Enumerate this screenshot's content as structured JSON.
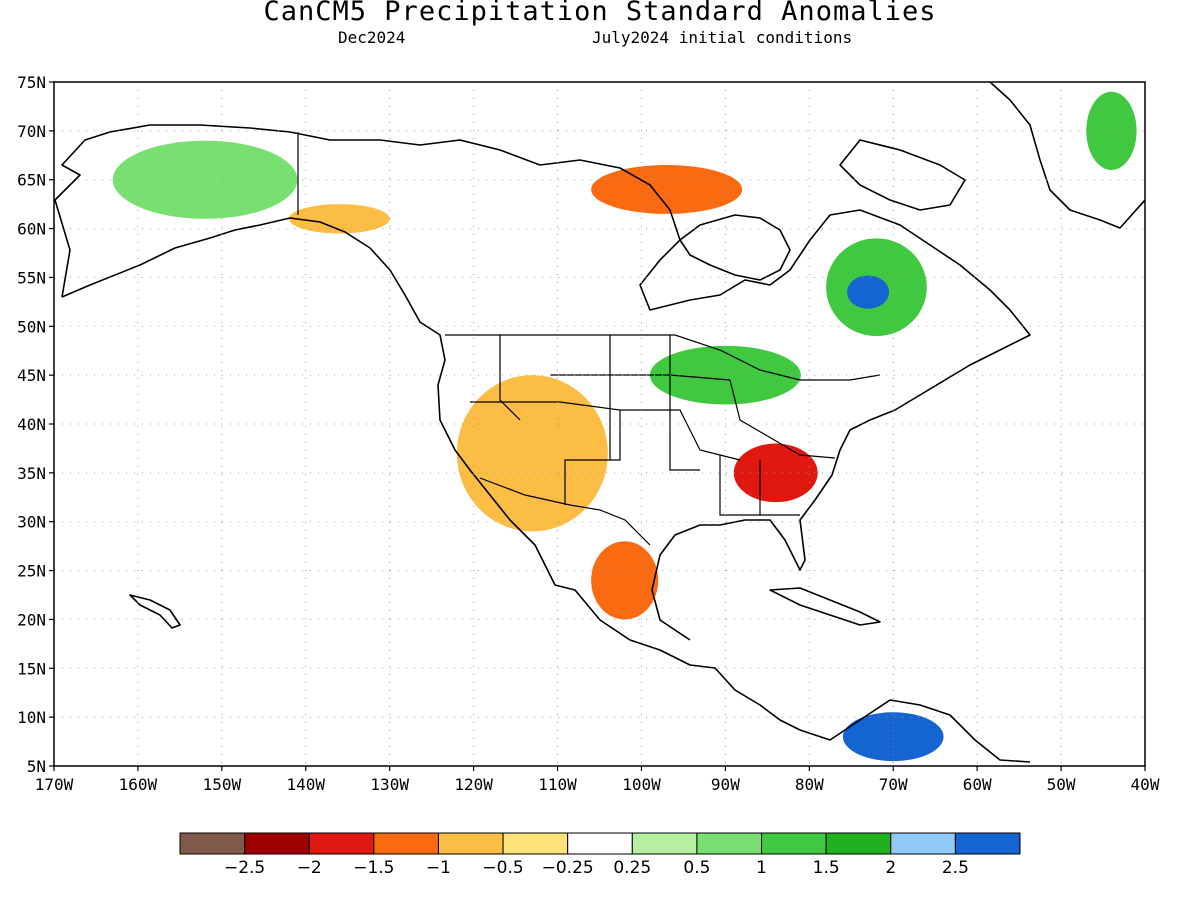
{
  "title": "CanCM5 Precipitation Standard Anomalies",
  "subtitle_left": "Dec2024",
  "subtitle_right": "July2024 initial conditions",
  "map": {
    "lon_range": [
      -170,
      -40
    ],
    "lat_range": [
      5,
      75
    ],
    "grid": "dotted",
    "y_ticks": [
      "75N",
      "70N",
      "65N",
      "60N",
      "55N",
      "50N",
      "45N",
      "40N",
      "35N",
      "30N",
      "25N",
      "20N",
      "15N",
      "10N",
      "5N"
    ],
    "x_ticks": [
      "170W",
      "160W",
      "150W",
      "140W",
      "130W",
      "120W",
      "110W",
      "100W",
      "90W",
      "80W",
      "70W",
      "60W",
      "50W",
      "40W"
    ]
  },
  "colorbar": {
    "colors": [
      "#7f5a4a",
      "#a00000",
      "#e01810",
      "#fa6a10",
      "#fbbd44",
      "#fde27a",
      "#ffffff",
      "#b4f0a0",
      "#78e070",
      "#40c840",
      "#20b020",
      "#90caf8",
      "#1464d2"
    ],
    "labels": [
      "−2.5",
      "−2",
      "−1.5",
      "−1",
      "−0.5",
      "−0.25",
      "0.25",
      "0.5",
      "1",
      "1.5",
      "2",
      "2.5"
    ]
  },
  "anomaly_regions": [
    {
      "name": "alaska-wet",
      "level": "0.5",
      "lon": -152,
      "lat": 65,
      "rx": 11,
      "ry": 4
    },
    {
      "name": "yukon-dry",
      "level": "-0.5",
      "lon": -136,
      "lat": 61,
      "rx": 6,
      "ry": 1.5
    },
    {
      "name": "nunavut-dry",
      "level": "-1",
      "lon": -97,
      "lat": 64,
      "rx": 9,
      "ry": 2.5
    },
    {
      "name": "quebec-wet",
      "level": "1",
      "lon": -72,
      "lat": 54,
      "rx": 6,
      "ry": 5
    },
    {
      "name": "quebec-wet-core",
      "level": "2.5",
      "lon": -73,
      "lat": 53.5,
      "rx": 2.5,
      "ry": 1.7
    },
    {
      "name": "us-west-dry",
      "level": "-0.5",
      "lon": -113,
      "lat": 37,
      "rx": 9,
      "ry": 8
    },
    {
      "name": "southeast-dry",
      "level": "-1.5",
      "lon": -84,
      "lat": 35,
      "rx": 5,
      "ry": 3
    },
    {
      "name": "mexico-dry",
      "level": "-1",
      "lon": -102,
      "lat": 24,
      "rx": 4,
      "ry": 4
    },
    {
      "name": "great-lakes-wet",
      "level": "1",
      "lon": -90,
      "lat": 45,
      "rx": 9,
      "ry": 3
    },
    {
      "name": "south-america-wet",
      "level": "2.5",
      "lon": -70,
      "lat": 8,
      "rx": 6,
      "ry": 2.5
    },
    {
      "name": "greenland-wet",
      "level": "1",
      "lon": -44,
      "lat": 70,
      "rx": 3,
      "ry": 4
    }
  ]
}
